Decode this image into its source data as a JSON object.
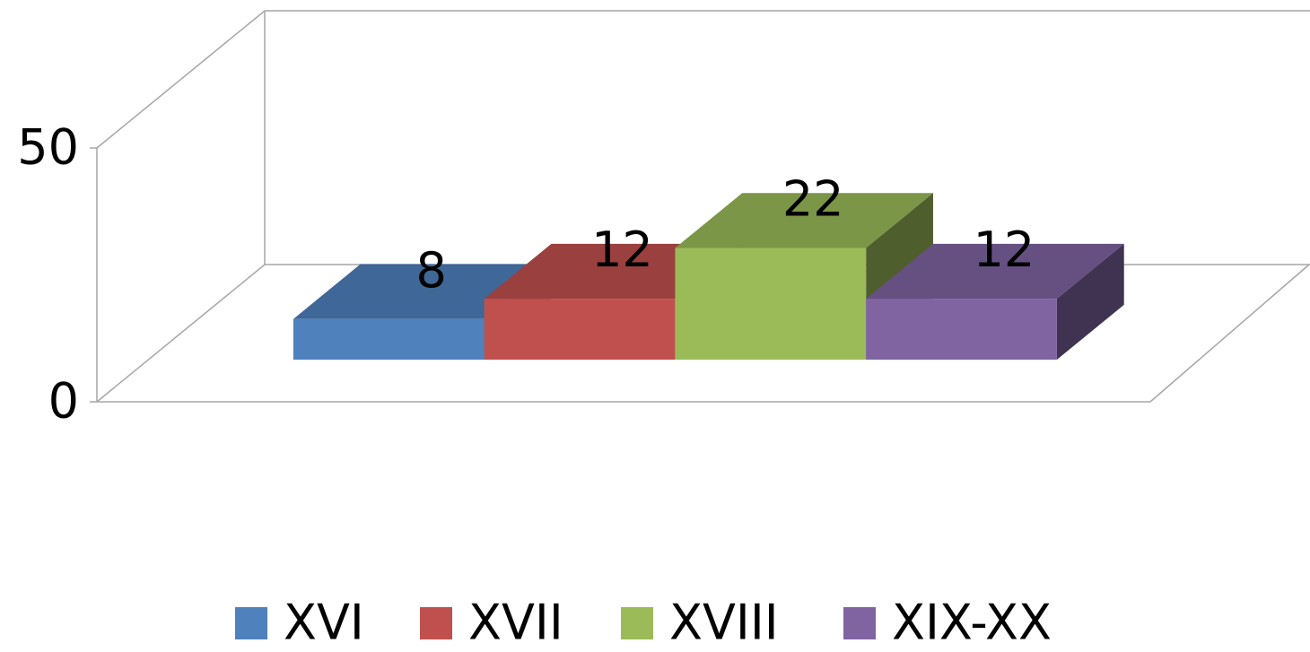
{
  "chart_data": {
    "type": "bar3d",
    "categories": [
      null
    ],
    "series": [
      {
        "name": "XVI",
        "color": "#4f81bd",
        "values": [
          8
        ]
      },
      {
        "name": "XVII",
        "color": "#c0504d",
        "values": [
          12
        ]
      },
      {
        "name": "XVIII",
        "color": "#9bbb59",
        "values": [
          22
        ]
      },
      {
        "name": "XIX-XX",
        "color": "#8064a2",
        "values": [
          12
        ]
      }
    ],
    "ylim": [
      0,
      50
    ],
    "yticks": [
      0,
      50
    ],
    "grid": true,
    "legend": "bottom",
    "data_labels": true
  }
}
